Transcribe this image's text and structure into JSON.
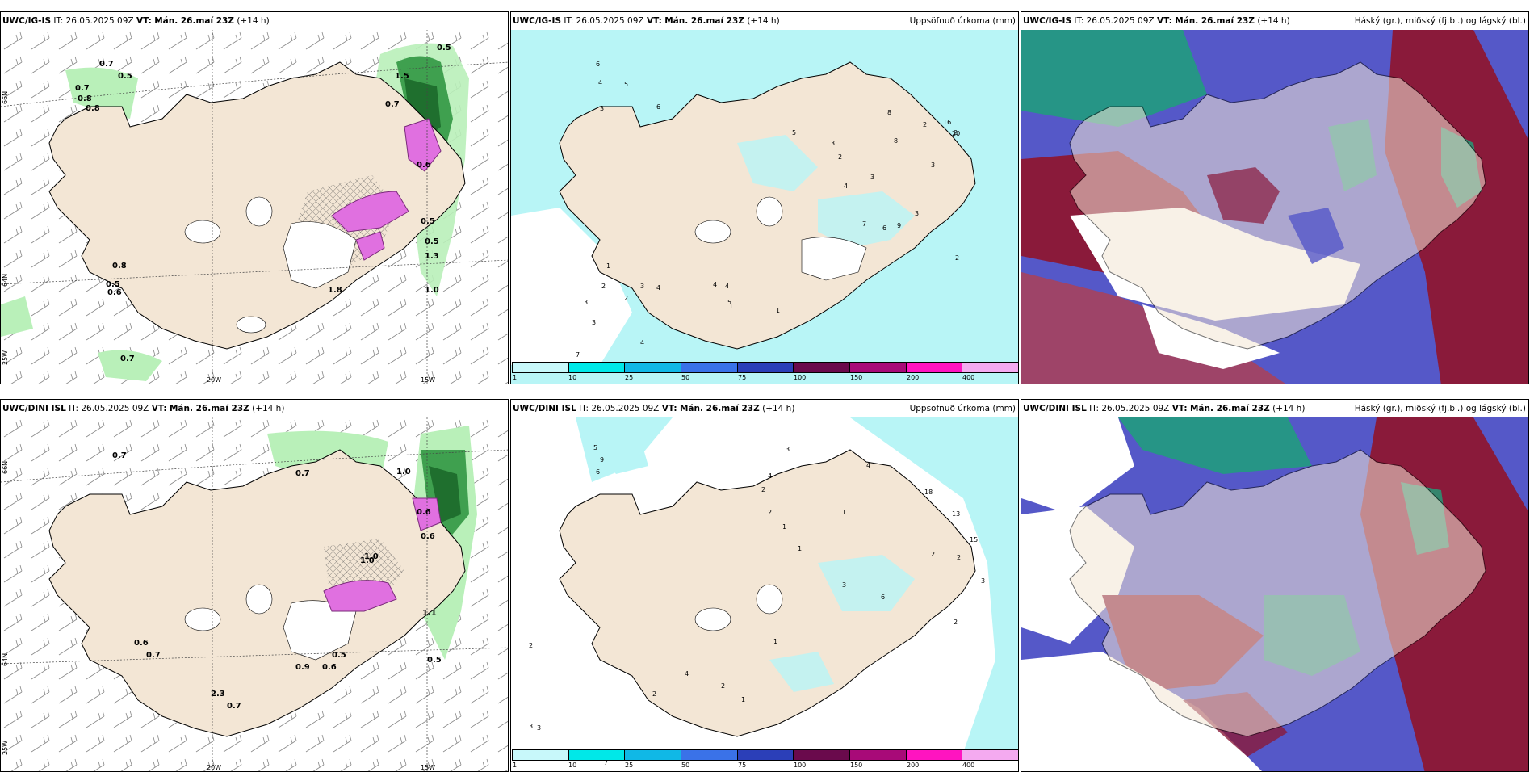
{
  "panels": [
    {
      "model": "UWC/IG-IS",
      "it": "IT: 26.05.2025 09Z",
      "vt_label": "VT:",
      "vt": "Mán. 26.maí 23Z",
      "step": "(+14 h)",
      "right": ""
    },
    {
      "model": "UWC/IG-IS",
      "it": "IT: 26.05.2025 09Z",
      "vt_label": "VT:",
      "vt": "Mán. 26.maí 23Z",
      "step": "(+14 h)",
      "right": "Uppsöfnuð úrkoma (mm)"
    },
    {
      "model": "UWC/IG-IS",
      "it": "IT: 26.05.2025 09Z",
      "vt_label": "VT:",
      "vt": "Mán. 26.maí 23Z",
      "step": "(+14 h)",
      "right": "Háský (gr.), miðský (fj.bl.) og lágský (bl.)"
    },
    {
      "model": "UWC/DINI ISL",
      "it": "IT: 26.05.2025 09Z",
      "vt_label": "VT:",
      "vt": "Mán. 26.maí 23Z",
      "step": "(+14 h)",
      "right": ""
    },
    {
      "model": "UWC/DINI ISL",
      "it": "IT: 26.05.2025 09Z",
      "vt_label": "VT:",
      "vt": "Mán. 26.maí 23Z",
      "step": "(+14 h)",
      "right": "Uppsöfnuð úrkoma (mm)"
    },
    {
      "model": "UWC/DINI ISL",
      "it": "IT: 26.05.2025 09Z",
      "vt_label": "VT:",
      "vt": "Mán. 26.maí 23Z",
      "step": "(+14 h)",
      "right": "Háský (gr.), miðský (fj.bl.) og lágský (bl.)"
    }
  ],
  "legend": {
    "ticks": [
      "1",
      "10",
      "25",
      "50",
      "75",
      "100",
      "150",
      "200",
      "400"
    ],
    "colors": [
      "#c8f8fa",
      "#00e8e8",
      "#10b8e6",
      "#3a72e8",
      "#2b3fb8",
      "#6a0a4c",
      "#a80a78",
      "#ff14c0",
      "#f4aaf0"
    ]
  },
  "axis_labels": {
    "lon_20w": "20W",
    "lon_15w": "15W",
    "lat_66n": "66N",
    "lat_64n": "64N",
    "lat_25w": "25W"
  },
  "precip_labels_top": [
    "0.7",
    "0.5",
    "0.7",
    "0.8",
    "0.8",
    "1.5",
    "0.7",
    "0.5",
    "0.6",
    "0.5",
    "1.3",
    "0.8",
    "1.0",
    "0.6",
    "1.8",
    "0.7",
    "0.5",
    "0.5"
  ],
  "precip_labels_bottom": [
    "0.7",
    "1.0",
    "0.7",
    "1.0",
    "0.6",
    "1.0",
    "0.6",
    "0.7",
    "2.3",
    "0.7",
    "0.9",
    "0.6",
    "0.5",
    "0.5",
    "1.1",
    "0.6"
  ],
  "accum_labels_top": [
    "6",
    "4",
    "3",
    "5",
    "6",
    "8",
    "3",
    "2",
    "2",
    "5",
    "8",
    "16",
    "20",
    "2",
    "3",
    "4",
    "3",
    "7",
    "6",
    "9",
    "3",
    "2",
    "1",
    "2",
    "3",
    "2",
    "4",
    "4",
    "5",
    "4",
    "3",
    "7",
    "4",
    "1",
    "1",
    "3"
  ],
  "accum_labels_bottom": [
    "5",
    "9",
    "6",
    "3",
    "2",
    "4",
    "4",
    "2",
    "1",
    "1",
    "18",
    "13",
    "15",
    "2",
    "2",
    "3",
    "2",
    "1",
    "6",
    "3",
    "1",
    "7",
    "2",
    "3",
    "3",
    "2",
    "4",
    "2",
    "1"
  ],
  "colors": {
    "land": "#f3e6d5",
    "sea_accum": "#b8f5f6",
    "green_light": "#b9f0b9",
    "green_dark": "#1f6f2e",
    "magenta": "#e070e0",
    "cloud_blue": "#5558c8",
    "cloud_red": "#8a1a3a",
    "cloud_green": "#1fa07a",
    "cloud_base": "#6a7ba8"
  }
}
